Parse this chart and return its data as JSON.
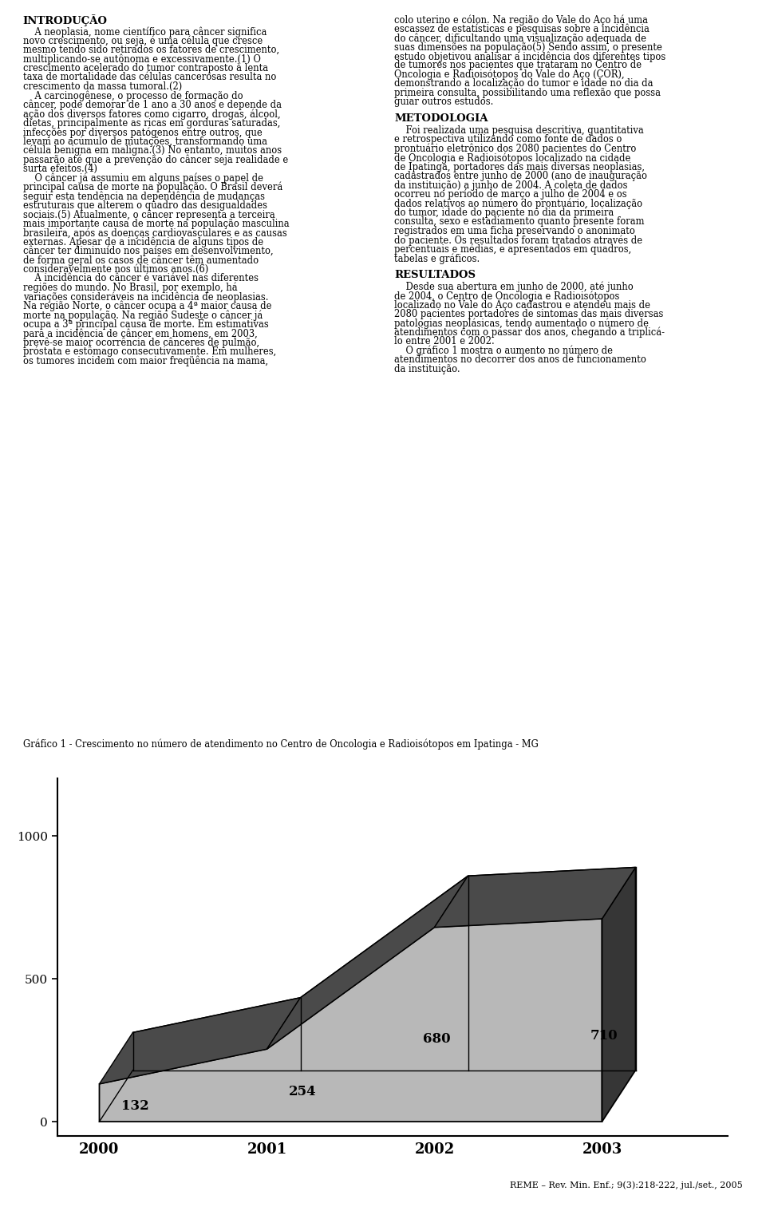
{
  "years": [
    "2000",
    "2001",
    "2002",
    "2003"
  ],
  "values": [
    132,
    254,
    680,
    710
  ],
  "yticks": [
    0,
    500,
    1000
  ],
  "color_front": "#b8b8b8",
  "color_top": "#4a4a4a",
  "color_side": "#363636",
  "grafico_label": "Gráfico 1 - Crescimento no número de atendimento no Centro de Oncologia e Radioisótopos em Ipatinga - MG",
  "footer": "REME – Rev. Min. Enf.; 9(3):218-222, jul./set., 2005",
  "bg_color": "#ffffff",
  "text_color": "#000000",
  "left_col_title": "INTRODUÇÃO",
  "left_col_lines": [
    "    A neoplasia, nome científico para câncer significa",
    "novo crescimento, ou seja, é uma célula que cresce",
    "mesmo tendo sido retirados os fatores de crescimento,",
    "multiplicando-se autônoma e excessivamente.(1) O",
    "crescimento acelerado do tumor contraposto à lenta",
    "taxa de mortalidade das células cancerosas resulta no",
    "crescimento da massa tumoral.(2)",
    "    A carcinogênese, o processo de formação do",
    "câncer, pode demorar de 1 ano a 30 anos e depende da",
    "ação dos diversos fatores como cigarro, drogas, álcool,",
    "dietas, principalmente as ricas em gorduras saturadas,",
    "infecções por diversos patógenos entre outros, que",
    "levam ao acúmulo de mutações, transformando uma",
    "célula benigna em maligna.(3) No entanto, muitos anos",
    "passarão até que a prevenção do câncer seja realidade e",
    "surta efeitos.(4)",
    "    O câncer já assumiu em alguns países o papel de",
    "principal causa de morte na população. O Brasil deverá",
    "seguir esta tendência na dependência de mudanças",
    "estruturais que alterem o quadro das desigualdades",
    "sociais.(5) Atualmente, o câncer representa a terceira",
    "mais importante causa de morte na população masculina",
    "brasileira, após as doenças cardiovasculares e as causas",
    "externas. Apesar de a incidência de alguns tipos de",
    "câncer ter diminuído nos países em desenvolvimento,",
    "de forma geral os casos de câncer têm aumentado",
    "consideravelmente nos últimos anos.(6)",
    "    A incidência do câncer é variável nas diferentes",
    "regiões do mundo. No Brasil, por exemplo, há",
    "variações consideráveis na incidência de neoplasias.",
    "Na região Norte, o câncer ocupa a 4ª maior causa de",
    "morte na população. Na região Sudeste o câncer já",
    "ocupa a 3ª principal causa de morte. Em estimativas",
    "para a incidência de câncer em homens, em 2003,",
    "prevê-se maior ocorrência de cânceres de pulmão,",
    "próstata e estômago consecutivamente. Em mulheres,",
    "os tumores incidem com maior freqüência na mama,"
  ],
  "right_col_para1": [
    "colo uterino e cólon. Na região do Vale do Aço há uma",
    "escassez de estatísticas e pesquisas sobre a incidência",
    "do câncer, dificultando uma visualização adequada de",
    "suas dimensões na população(5) Sendo assim, o presente",
    "estudo objetivou analisar a incidência dos diferentes tipos",
    "de tumores nos pacientes que trataram no Centro de",
    "Oncologia e Radioisótopos do Vale do Aço (COR),",
    "demonstrando a localização do tumor e idade no dia da",
    "primeira consulta, possibilitando uma reflexão que possa",
    "guiar outros estudos."
  ],
  "right_col_metod_title": "METODOLOGIA",
  "right_col_metod": [
    "    Foi realizada uma pesquisa descritiva, quantitativa",
    "e retrospectiva utilizando como fonte de dados o",
    "prontuário eletrônico dos 2080 pacientes do Centro",
    "de Oncologia e Radioisótopos localizado na cidade",
    "de Ipatinga, portadores das mais diversas neoplasias,",
    "cadastrados entre junho de 2000 (ano de inauguração",
    "da instituição) a junho de 2004. A coleta de dados",
    "ocorreu no período de março a julho de 2004 e os",
    "dados relativos ao número do prontuário, localização",
    "do tumor, idade do paciente no dia da primeira",
    "consulta, sexo e estadiamento quanto presente foram",
    "registrados em uma ficha preservando o anonimato",
    "do paciente. Os resultados foram tratados através de",
    "percentuais e médias, e apresentados em quadros,",
    "tabelas e gráficos."
  ],
  "right_col_result_title": "RESULTADOS",
  "right_col_result": [
    "    Desde sua abertura em junho de 2000, até junho",
    "de 2004, o Centro de Oncologia e Radioisótopos",
    "localizado no Vale do Aço cadastrou e atendeu mais de",
    "2080 pacientes portadores de sintomas das mais diversas",
    "patologias neoplásicas, tendo aumentado o número de",
    "atendimentos com o passar dos anos, chegando a triplicá-",
    "lo entre 2001 e 2002.",
    "    O gráfico 1 mostra o aumento no número de",
    "atendimentos no decorrer dos anos de funcionamento",
    "da instituição."
  ]
}
